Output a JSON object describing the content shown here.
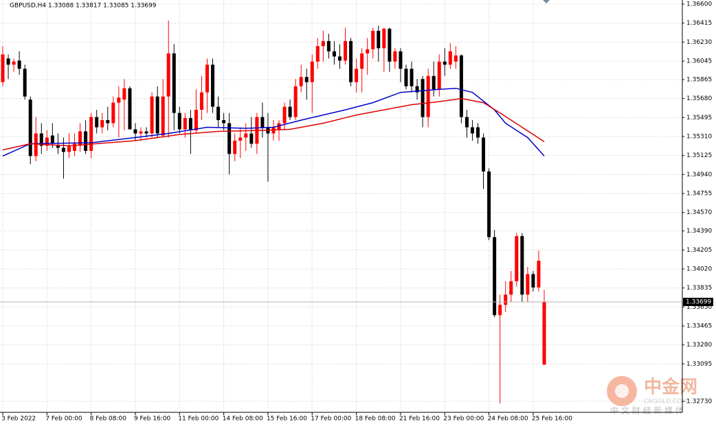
{
  "chart_data": {
    "type": "candlestick",
    "title": "GBPUSD,H4  1.33088 1.33817 1.33085 1.33699",
    "categories": [
      "3 Feb 2022",
      null,
      null,
      null,
      null,
      null,
      null,
      null,
      "7 Feb 00:00",
      null,
      null,
      null,
      null,
      null,
      null,
      null,
      "8 Feb 08:00",
      null,
      null,
      null,
      null,
      null,
      null,
      null,
      "9 Feb 16:00",
      null,
      null,
      null,
      null,
      null,
      null,
      null,
      "11 Feb 00:00",
      null,
      null,
      null,
      null,
      null,
      null,
      null,
      "14 Feb 08:00",
      null,
      null,
      null,
      null,
      null,
      null,
      null,
      "15 Feb 16:00",
      null,
      null,
      null,
      null,
      null,
      null,
      null,
      "17 Feb 00:00",
      null,
      null,
      null,
      null,
      null,
      null,
      null,
      "18 Feb 08:00",
      null,
      null,
      null,
      null,
      null,
      null,
      null,
      "21 Feb 16:00",
      null,
      null,
      null,
      null,
      null,
      null,
      null,
      "23 Feb 00:00",
      null,
      null,
      null,
      null,
      null,
      null,
      null,
      "24 Feb 08:00",
      null,
      null,
      null,
      null,
      null,
      null,
      null,
      "25 Feb 16:00",
      null,
      null
    ],
    "open": [
      1.3584,
      1.3607,
      1.3601,
      1.3605,
      1.3597,
      1.3567,
      1.3512,
      1.3534,
      1.3522,
      1.3532,
      1.3522,
      1.352,
      1.3516,
      1.3517,
      1.3522,
      1.3536,
      1.3517,
      1.355,
      1.354,
      1.3547,
      1.3544,
      1.3564,
      1.3567,
      1.3578,
      1.3538,
      1.3534,
      1.3536,
      1.3534,
      1.357,
      1.3532,
      1.357,
      1.3612,
      1.3554,
      1.3538,
      1.3549,
      1.3537,
      1.3557,
      1.3574,
      1.3601,
      1.356,
      1.3547,
      1.3544,
      1.3514,
      1.3527,
      1.353,
      1.3534,
      1.3524,
      1.355,
      1.354,
      1.3534,
      1.3537,
      1.3544,
      1.356,
      1.355,
      1.358,
      1.3589,
      1.3584,
      1.3604,
      1.3619,
      1.3624,
      1.3614,
      1.3609,
      1.3605,
      1.3624,
      1.3584,
      1.3597,
      1.3612,
      1.3616,
      1.3634,
      1.3617,
      1.3636,
      1.3604,
      1.3614,
      1.3597,
      1.3597,
      1.358,
      1.3587,
      1.355,
      1.359,
      1.3577,
      1.3604,
      1.3601,
      1.3604,
      1.361,
      1.355,
      1.354,
      1.354,
      1.353,
      1.3497,
      1.3433,
      1.3357,
      1.3367,
      1.3377,
      1.339,
      1.3434,
      1.3377,
      1.3397,
      1.3384,
      1.33088
    ],
    "high": [
      1.3619,
      1.3611,
      1.3607,
      1.3614,
      1.3601,
      1.357,
      1.355,
      1.3544,
      1.3537,
      1.3544,
      1.3534,
      1.353,
      1.3534,
      1.3534,
      1.3544,
      1.3547,
      1.3554,
      1.3557,
      1.3554,
      1.356,
      1.357,
      1.358,
      1.3587,
      1.358,
      1.3544,
      1.354,
      1.354,
      1.3574,
      1.358,
      1.3587,
      1.3644,
      1.3621,
      1.356,
      1.3554,
      1.3557,
      1.3577,
      1.359,
      1.3607,
      1.3607,
      1.357,
      1.3554,
      1.3554,
      1.3534,
      1.354,
      1.3544,
      1.355,
      1.3554,
      1.3564,
      1.3554,
      1.3547,
      1.3547,
      1.3564,
      1.3567,
      1.3587,
      1.3601,
      1.3597,
      1.3611,
      1.3627,
      1.3634,
      1.3631,
      1.3624,
      1.3621,
      1.3637,
      1.3627,
      1.3607,
      1.3617,
      1.3627,
      1.3637,
      1.3639,
      1.3637,
      1.3637,
      1.3617,
      1.3617,
      1.3601,
      1.3604,
      1.3587,
      1.359,
      1.3597,
      1.3604,
      1.3611,
      1.3617,
      1.3622,
      1.3619,
      1.3611,
      1.3557,
      1.3547,
      1.3544,
      1.3534,
      1.35,
      1.344,
      1.3377,
      1.339,
      1.34,
      1.3437,
      1.3437,
      1.3404,
      1.34,
      1.342,
      1.33817
    ],
    "low": [
      1.358,
      1.3587,
      1.3594,
      1.3591,
      1.3567,
      1.3504,
      1.3507,
      1.3514,
      1.3517,
      1.352,
      1.3514,
      1.349,
      1.351,
      1.3512,
      1.3516,
      1.3514,
      1.351,
      1.3534,
      1.3534,
      1.3537,
      1.354,
      1.353,
      1.3537,
      1.3538,
      1.3527,
      1.3527,
      1.353,
      1.353,
      1.353,
      1.353,
      1.353,
      1.3537,
      1.3534,
      1.353,
      1.3514,
      1.3534,
      1.3547,
      1.3554,
      1.3554,
      1.354,
      1.3537,
      1.3494,
      1.3507,
      1.351,
      1.3517,
      1.352,
      1.3514,
      1.353,
      1.3487,
      1.3527,
      1.3527,
      1.3537,
      1.3547,
      1.3547,
      1.3574,
      1.3567,
      1.3554,
      1.3597,
      1.3604,
      1.3607,
      1.3601,
      1.3597,
      1.3601,
      1.358,
      1.3574,
      1.3574,
      1.3591,
      1.3607,
      1.3604,
      1.3594,
      1.3594,
      1.3597,
      1.3584,
      1.3577,
      1.3574,
      1.3567,
      1.354,
      1.354,
      1.357,
      1.357,
      1.359,
      1.3597,
      1.3597,
      1.3544,
      1.353,
      1.3527,
      1.3524,
      1.348,
      1.343,
      1.3355,
      1.3271,
      1.336,
      1.337,
      1.3385,
      1.337,
      1.337,
      1.338,
      1.338,
      1.33085
    ],
    "close": [
      1.3611,
      1.3601,
      1.3604,
      1.3597,
      1.357,
      1.3512,
      1.3534,
      1.3522,
      1.353,
      1.3524,
      1.352,
      1.3516,
      1.3522,
      1.3524,
      1.3536,
      1.3517,
      1.355,
      1.354,
      1.3547,
      1.3544,
      1.3564,
      1.3569,
      1.3578,
      1.3538,
      1.3534,
      1.3536,
      1.3534,
      1.357,
      1.3534,
      1.357,
      1.3612,
      1.3554,
      1.3538,
      1.3549,
      1.3537,
      1.3557,
      1.3574,
      1.3601,
      1.356,
      1.3547,
      1.3544,
      1.3514,
      1.3527,
      1.353,
      1.3534,
      1.3524,
      1.355,
      1.354,
      1.3534,
      1.354,
      1.3544,
      1.356,
      1.355,
      1.358,
      1.3589,
      1.3584,
      1.3604,
      1.3619,
      1.3624,
      1.3614,
      1.3609,
      1.3605,
      1.3624,
      1.3584,
      1.3597,
      1.3612,
      1.3616,
      1.3634,
      1.3617,
      1.3636,
      1.3604,
      1.3614,
      1.3597,
      1.358,
      1.358,
      1.3574,
      1.355,
      1.359,
      1.3577,
      1.3604,
      1.3601,
      1.3614,
      1.361,
      1.355,
      1.354,
      1.3534,
      1.353,
      1.3497,
      1.3433,
      1.3357,
      1.3367,
      1.3377,
      1.339,
      1.3434,
      1.3377,
      1.3397,
      1.3384,
      1.341,
      1.33699
    ],
    "up_color": "#ff0000",
    "down_color": "#000000",
    "series": [
      {
        "color": "#0000cc",
        "x": [
          0,
          5,
          16,
          24,
          30,
          37,
          44,
          49,
          54,
          62,
          67,
          72,
          79,
          82,
          85,
          89,
          91,
          95,
          98
        ],
        "values": [
          1.3512,
          1.3524,
          1.3525,
          1.353,
          1.3534,
          1.354,
          1.3539,
          1.354,
          1.3547,
          1.3557,
          1.3564,
          1.3574,
          1.3577,
          1.3578,
          1.3574,
          1.3557,
          1.3544,
          1.353,
          1.3512
        ]
      },
      {
        "color": "#dd0000",
        "x": [
          0,
          5,
          12,
          24,
          32,
          39,
          47,
          52,
          58,
          64,
          69,
          74,
          79,
          83,
          87,
          90,
          94,
          98
        ],
        "values": [
          1.3518,
          1.3524,
          1.3522,
          1.3527,
          1.3533,
          1.3536,
          1.3537,
          1.3538,
          1.3544,
          1.3552,
          1.3557,
          1.3562,
          1.3565,
          1.3568,
          1.3564,
          1.3554,
          1.354,
          1.3526
        ]
      }
    ],
    "current_price": 1.33699,
    "ylim": [
      1.3263,
      1.3664
    ],
    "yticks": [
      {
        "value": 1.366,
        "label": "1.36600"
      },
      1.36415,
      {
        "value": 1.3623,
        "label": "1.36230"
      },
      1.36045,
      1.35865,
      {
        "value": 1.3568,
        "label": "1.35680"
      },
      1.35495,
      {
        "value": 1.3531,
        "label": "1.35310"
      },
      1.35125,
      {
        "value": 1.3494,
        "label": "1.34940"
      },
      1.34755,
      {
        "value": 1.3457,
        "label": "1.34570"
      },
      {
        "value": 1.3439,
        "label": "1.34390"
      },
      1.34205,
      {
        "value": 1.3402,
        "label": "1.34020"
      },
      1.33835,
      {
        "value": 1.3365,
        "label": "1.33650"
      },
      1.33465,
      {
        "value": 1.3328,
        "label": "1.33280"
      },
      1.33095,
      {
        "value": 1.3273,
        "label": "1.32730"
      }
    ],
    "grid": true,
    "watermark": {
      "brand": "中金网",
      "site": "CNGOLD.COM",
      "slogan": "中 文 财 经 新 媒 体"
    }
  }
}
